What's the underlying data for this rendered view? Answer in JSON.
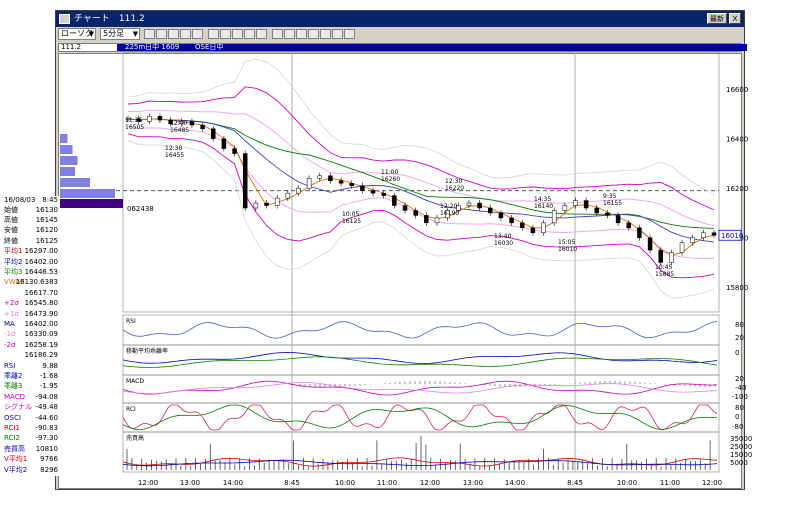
{
  "window": {
    "title": "チャート　111.2",
    "btn1": "最新",
    "btn2": "X"
  },
  "toolbar": {
    "combo1": "ローソク",
    "combo2": "5分足"
  },
  "info": {
    "code": "111.2",
    "label1": "225m日中 1609",
    "label2": "OSE日中"
  },
  "side": {
    "header_date": "16/08/03",
    "header_time": "8:45",
    "rows": [
      {
        "k": "始値",
        "v": "16130",
        "c": "#000000"
      },
      {
        "k": "高値",
        "v": "16145",
        "c": "#000000"
      },
      {
        "k": "安値",
        "v": "16120",
        "c": "#000000"
      },
      {
        "k": "終値",
        "v": "16125",
        "c": "#000000"
      },
      {
        "k": "平均1",
        "v": "16297.00",
        "c": "#d00000"
      },
      {
        "k": "平均2",
        "v": "16402.00",
        "c": "#0000c0"
      },
      {
        "k": "平均3",
        "v": "16446.53",
        "c": "#008000"
      },
      {
        "k": "VWAP",
        "v": "16130.6383",
        "c": "#e07000"
      },
      {
        "k": "",
        "v": "16617.70",
        "c": "#000000"
      },
      {
        "k": "+2σ",
        "v": "16545.80",
        "c": "#c000c0"
      },
      {
        "k": "+1σ",
        "v": "16473.90",
        "c": "#e080e0"
      },
      {
        "k": "MA",
        "v": "16402.00",
        "c": "#0000c0"
      },
      {
        "k": "-1σ",
        "v": "16330.09",
        "c": "#e080e0"
      },
      {
        "k": "-2σ",
        "v": "16258.19",
        "c": "#c000c0"
      },
      {
        "k": "",
        "v": "16186.29",
        "c": "#000000"
      },
      {
        "k": "RSI",
        "v": "9.88",
        "c": "#0000c0"
      },
      {
        "k": "乖離2",
        "v": "-1.68",
        "c": "#0000c0"
      },
      {
        "k": "乖離3",
        "v": "-1.95",
        "c": "#008000"
      },
      {
        "k": "MACD",
        "v": "-94.08",
        "c": "#c000c0"
      },
      {
        "k": "シグナル",
        "v": "-49.48",
        "c": "#c000c0"
      },
      {
        "k": "OSCI",
        "v": "-44.60",
        "c": "#0000c0"
      },
      {
        "k": "RCI1",
        "v": "-90.83",
        "c": "#d00000"
      },
      {
        "k": "RCI2",
        "v": "-97.30",
        "c": "#008000"
      },
      {
        "k": "売買高",
        "v": "10810",
        "c": "#0000c0"
      },
      {
        "k": "V平均1",
        "v": "9766",
        "c": "#d00000"
      },
      {
        "k": "V平均2",
        "v": "8296",
        "c": "#0000c0"
      }
    ]
  },
  "chart_data": {
    "type": "line",
    "x_ticks": [
      "12:00",
      "13:00",
      "14:00",
      "8:45",
      "10:00",
      "11:00",
      "12:00",
      "13:00",
      "14:00",
      "8:45",
      "10:00",
      "11:00",
      "12:00"
    ],
    "price": {
      "yticks": [
        "16600",
        "16400",
        "16200",
        "16000",
        "15800"
      ],
      "ylim": [
        15700,
        16750
      ],
      "last_price_label": "16010",
      "dashed_level": 16190,
      "marker_label": "062438",
      "annotations": [
        {
          "t": "11:35",
          "v": "16505"
        },
        {
          "t": "12:40",
          "v": "16485"
        },
        {
          "t": "12:30",
          "v": "16455"
        },
        {
          "t": "11:00",
          "v": "16260"
        },
        {
          "t": "12:30",
          "v": "16220"
        },
        {
          "t": "10:05",
          "v": "16125"
        },
        {
          "t": "12:20",
          "v": "16190"
        },
        {
          "t": "14:35",
          "v": "16140"
        },
        {
          "t": "9:35",
          "v": "16155"
        },
        {
          "t": "13:40",
          "v": "16030"
        },
        {
          "t": "15:05",
          "v": "16010"
        },
        {
          "t": "10:45",
          "v": "15885"
        }
      ],
      "close": [
        16480,
        16470,
        16490,
        16475,
        16460,
        16470,
        16455,
        16440,
        16400,
        16360,
        16340,
        16120,
        16140,
        16130,
        16160,
        16180,
        16200,
        16240,
        16250,
        16230,
        16220,
        16210,
        16190,
        16180,
        16170,
        16130,
        16110,
        16090,
        16060,
        16080,
        16110,
        16130,
        16140,
        16120,
        16100,
        16080,
        16060,
        16040,
        16020,
        16060,
        16110,
        16130,
        16150,
        16120,
        16100,
        16090,
        16060,
        16040,
        16000,
        15950,
        15900,
        15940,
        15980,
        16000,
        16020,
        16010
      ],
      "volume_profile": [
        3,
        5,
        7,
        6,
        12,
        22
      ]
    },
    "rsi": {
      "label": "RSI",
      "yticks": [
        "80",
        "20"
      ]
    },
    "kairi": {
      "label": "移動平均乖離率",
      "yticks": [
        "0"
      ]
    },
    "macd": {
      "label": "MACD",
      "yticks": [
        "20",
        "-40",
        "-100"
      ]
    },
    "rci": {
      "label": "RCI",
      "yticks": [
        "80",
        "0",
        "-80"
      ]
    },
    "volume": {
      "label": "売買高",
      "yticks": [
        "35000",
        "25000",
        "15000",
        "5000"
      ]
    }
  }
}
